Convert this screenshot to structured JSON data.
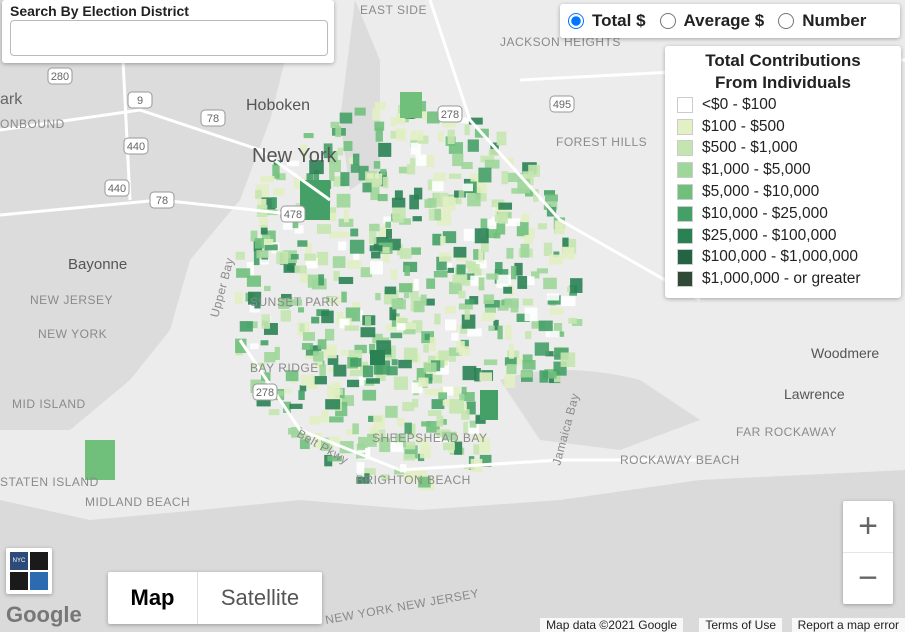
{
  "search": {
    "label": "Search By Election District"
  },
  "metric_options": [
    {
      "label": "Total $",
      "selected": true
    },
    {
      "label": "Average $",
      "selected": false
    },
    {
      "label": "Number",
      "selected": false
    }
  ],
  "legend": {
    "title_lines": [
      "Total Contributions",
      "From Individuals"
    ],
    "items": [
      {
        "label": "<$0 - $100",
        "color": "#ffffff"
      },
      {
        "label": "$100 - $500",
        "color": "#e2f0c3"
      },
      {
        "label": "$500 - $1,000",
        "color": "#c5e5b0"
      },
      {
        "label": "$1,000 - $5,000",
        "color": "#9fd69a"
      },
      {
        "label": "$5,000 - $10,000",
        "color": "#70c07c"
      },
      {
        "label": "$10,000 - $25,000",
        "color": "#45a067"
      },
      {
        "label": "$25,000 - $100,000",
        "color": "#2a8254"
      },
      {
        "label": "$100,000 - $1,000,000",
        "color": "#246445"
      },
      {
        "label": "$1,000,000 - or greater",
        "color": "#2f4936"
      }
    ]
  },
  "map_labels": [
    "EAST SIDE",
    "JACKSON HEIGHTS",
    "Hoboken",
    "ark",
    "ONBOUND",
    "New York",
    "FOREST HILLS",
    "Bayonne",
    "NEW JERSEY",
    "NEW YORK",
    "SUNSET PARK",
    "Upper Bay",
    "BAY RIDGE",
    "MID ISLAND",
    "STATEN ISLAND",
    "MIDLAND BEACH",
    "SHEEPSHEAD BAY",
    "BRIGHTON BEACH",
    "Belt Pkwy",
    "Jamaica Bay",
    "Woodmere",
    "Lawrence",
    "FAR ROCKAWAY",
    "ROCKAWAY BEACH",
    "NEW YORK NEW JERSEY"
  ],
  "route_shields": [
    "280",
    "9",
    "78",
    "440",
    "440",
    "478",
    "78",
    "278",
    "495",
    "278"
  ],
  "badge": "NYC",
  "map_types": [
    {
      "label": "Map",
      "selected": true
    },
    {
      "label": "Satellite",
      "selected": false
    }
  ],
  "zoom": {
    "in": "+",
    "out": "−"
  },
  "logo": "Google",
  "footer": [
    "Map data ©2021 Google",
    "Terms of Use",
    "Report a map error"
  ]
}
